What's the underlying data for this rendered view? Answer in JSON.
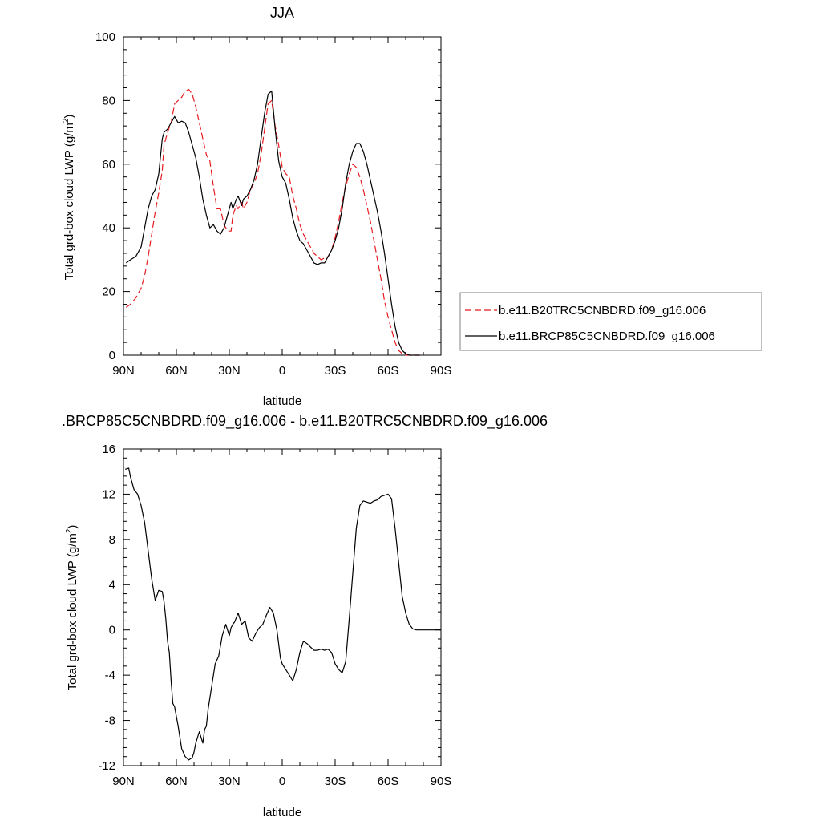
{
  "chart_data": [
    {
      "type": "line",
      "title": "JJA",
      "xlabel": "latitude",
      "ylabel": "Total grd-box cloud LWP (g/m",
      "ylabel_sup": "2",
      "ylabel_tail": ")",
      "xlim": [
        90,
        -90
      ],
      "ylim": [
        0,
        100
      ],
      "xticks": [
        {
          "value": 90,
          "label": "90N"
        },
        {
          "value": 60,
          "label": "60N"
        },
        {
          "value": 30,
          "label": "30N"
        },
        {
          "value": 0,
          "label": "0"
        },
        {
          "value": -30,
          "label": "30S"
        },
        {
          "value": -60,
          "label": "60S"
        },
        {
          "value": -90,
          "label": "90S"
        }
      ],
      "yticks": [
        {
          "value": 0,
          "label": "0"
        },
        {
          "value": 20,
          "label": "20"
        },
        {
          "value": 40,
          "label": "40"
        },
        {
          "value": 60,
          "label": "60"
        },
        {
          "value": 80,
          "label": "80"
        },
        {
          "value": 100,
          "label": "100"
        }
      ],
      "legend_position": "right",
      "series": [
        {
          "name": "b.e11.B20TRC5CNBDRD.f09_g16.006",
          "color": "#e8191f",
          "dash": "dashed",
          "x": [
            88.5,
            86,
            83,
            80,
            78,
            76,
            74,
            72,
            70,
            68,
            67,
            65,
            63,
            61,
            59,
            57,
            55,
            53,
            51,
            49,
            47,
            45,
            43,
            41,
            39,
            37,
            35,
            33,
            31,
            29,
            28,
            26,
            25,
            23,
            22,
            20,
            18,
            16,
            14,
            12,
            10,
            8,
            6,
            4,
            2,
            0,
            -2,
            -4,
            -6,
            -8,
            -10,
            -12,
            -14,
            -16,
            -18,
            -20,
            -22,
            -24,
            -26,
            -28,
            -30,
            -32,
            -34,
            -36,
            -38,
            -40,
            -42,
            -44,
            -46,
            -48,
            -50,
            -52,
            -54,
            -56,
            -58,
            -60,
            -62,
            -64,
            -66,
            -68,
            -70,
            -72,
            -74,
            -76,
            -78
          ],
          "y": [
            15,
            16,
            18,
            21,
            25,
            31,
            38,
            45,
            51,
            58,
            66,
            70,
            73,
            79,
            80,
            81,
            83,
            83.5,
            82,
            78,
            73,
            68,
            63,
            61,
            53,
            46,
            46,
            41,
            39,
            39,
            44,
            47,
            46,
            48,
            46,
            48,
            52,
            54,
            57,
            63,
            71,
            79,
            80,
            72,
            66,
            59,
            57,
            56,
            50,
            46,
            41,
            38,
            36,
            34,
            32,
            31,
            30,
            30.5,
            31,
            33,
            37,
            42,
            48,
            53,
            57,
            60,
            59,
            56,
            52,
            47,
            42,
            36,
            30,
            24,
            17,
            12,
            8,
            4,
            1.5,
            0.5,
            0,
            0,
            0,
            0,
            0
          ]
        },
        {
          "name": "b.e11.BRCP85C5CNBDRD.f09_g16.006",
          "color": "#000000",
          "dash": "solid",
          "x": [
            88.5,
            86,
            83,
            80,
            78,
            76,
            74,
            72,
            70,
            68,
            67,
            65,
            63,
            61,
            59,
            57,
            55,
            53,
            51,
            49,
            47,
            45,
            43,
            41,
            39,
            37,
            35,
            33,
            31,
            29,
            28,
            26,
            25,
            23,
            22,
            20,
            18,
            16,
            14,
            12,
            10,
            8,
            6,
            4,
            2,
            0,
            -2,
            -4,
            -6,
            -8,
            -10,
            -12,
            -14,
            -16,
            -18,
            -20,
            -22,
            -24,
            -26,
            -28,
            -30,
            -32,
            -34,
            -36,
            -38,
            -40,
            -42,
            -44,
            -46,
            -48,
            -50,
            -52,
            -54,
            -56,
            -58,
            -60,
            -62,
            -64,
            -66,
            -68,
            -70,
            -72,
            -74,
            -76,
            -78
          ],
          "y": [
            29,
            30,
            31,
            34,
            40,
            46,
            50,
            52,
            57,
            68,
            70,
            71,
            73,
            75,
            73,
            73.5,
            73,
            70,
            66,
            62,
            56,
            49,
            44,
            40,
            41,
            39,
            38,
            40,
            44,
            48,
            46,
            49,
            50,
            47,
            49,
            50,
            52,
            55,
            60,
            68,
            76,
            82,
            83,
            71,
            61,
            56,
            54,
            49,
            43,
            39,
            36,
            35,
            33,
            31,
            29,
            28.5,
            29,
            29,
            31,
            33,
            36,
            40,
            46,
            54,
            60,
            64,
            66.5,
            66.5,
            64,
            60,
            55,
            50,
            45,
            39,
            32,
            24,
            16,
            9,
            4,
            1.5,
            0.5,
            0,
            0,
            0,
            0
          ]
        }
      ]
    },
    {
      "type": "line",
      "title": ".BRCP85C5CNBDRD.f09_g16.006 - b.e11.B20TRC5CNBDRD.f09_g16.006",
      "xlabel": "latitude",
      "ylabel": "Total grd-box cloud LWP (g/m",
      "ylabel_sup": "2",
      "ylabel_tail": ")",
      "xlim": [
        90,
        -90
      ],
      "ylim": [
        -12,
        16
      ],
      "xticks": [
        {
          "value": 90,
          "label": "90N"
        },
        {
          "value": 60,
          "label": "60N"
        },
        {
          "value": 30,
          "label": "30N"
        },
        {
          "value": 0,
          "label": "0"
        },
        {
          "value": -30,
          "label": "30S"
        },
        {
          "value": -60,
          "label": "60S"
        },
        {
          "value": -90,
          "label": "90S"
        }
      ],
      "yticks": [
        {
          "value": -12,
          "label": "-12"
        },
        {
          "value": -8,
          "label": "-8"
        },
        {
          "value": -4,
          "label": "-4"
        },
        {
          "value": 0,
          "label": "0"
        },
        {
          "value": 4,
          "label": "4"
        },
        {
          "value": 8,
          "label": "8"
        },
        {
          "value": 12,
          "label": "12"
        },
        {
          "value": 16,
          "label": "16"
        }
      ],
      "series": [
        {
          "color": "#000000",
          "dash": "solid",
          "x": [
            89,
            87,
            86,
            84,
            82,
            80,
            78,
            76,
            74,
            72,
            70,
            68,
            67,
            66,
            65,
            64,
            63,
            62,
            61,
            59,
            57,
            55,
            53,
            51,
            50,
            49,
            47,
            45,
            44,
            43,
            42,
            40,
            38,
            36,
            34,
            32,
            30,
            29,
            28,
            27,
            25,
            23,
            21,
            19,
            17,
            15,
            13,
            11,
            9,
            7,
            5,
            3,
            1,
            0,
            -2,
            -4,
            -6,
            -8,
            -10,
            -12,
            -14,
            -16,
            -18,
            -20,
            -22,
            -24,
            -26,
            -28,
            -30,
            -32,
            -34,
            -36,
            -38,
            -40,
            -42,
            -44,
            -46,
            -48,
            -50,
            -52,
            -54,
            -56,
            -58,
            -60,
            -62,
            -64,
            -66,
            -68,
            -70,
            -72,
            -74,
            -76,
            -78,
            -80,
            -84,
            -90
          ],
          "y": [
            14.2,
            14.3,
            13.5,
            12.4,
            12,
            11,
            9.5,
            7,
            4.5,
            2.6,
            3.5,
            3.4,
            2.5,
            1,
            -1,
            -2,
            -4.5,
            -6.5,
            -6.8,
            -8.5,
            -10.5,
            -11.2,
            -11.5,
            -11.3,
            -10.8,
            -10,
            -9,
            -10,
            -8.8,
            -8.5,
            -7,
            -5,
            -3,
            -2.3,
            -0.5,
            0.5,
            -0.5,
            0.2,
            0.5,
            0.7,
            1.5,
            0.5,
            0.8,
            -0.7,
            -1,
            -0.3,
            0.2,
            0.5,
            1.3,
            2,
            1.5,
            0,
            -2.5,
            -3,
            -3.5,
            -4,
            -4.5,
            -3.5,
            -2,
            -1,
            -1.2,
            -1.5,
            -1.8,
            -1.8,
            -1.7,
            -1.8,
            -1.7,
            -2,
            -3,
            -3.5,
            -3.8,
            -2.8,
            1,
            5,
            9,
            11,
            11.4,
            11.3,
            11.2,
            11.4,
            11.5,
            11.8,
            11.9,
            12,
            11.6,
            9,
            6,
            3,
            1.5,
            0.5,
            0.1,
            0,
            0,
            0,
            0,
            0
          ]
        }
      ]
    }
  ]
}
